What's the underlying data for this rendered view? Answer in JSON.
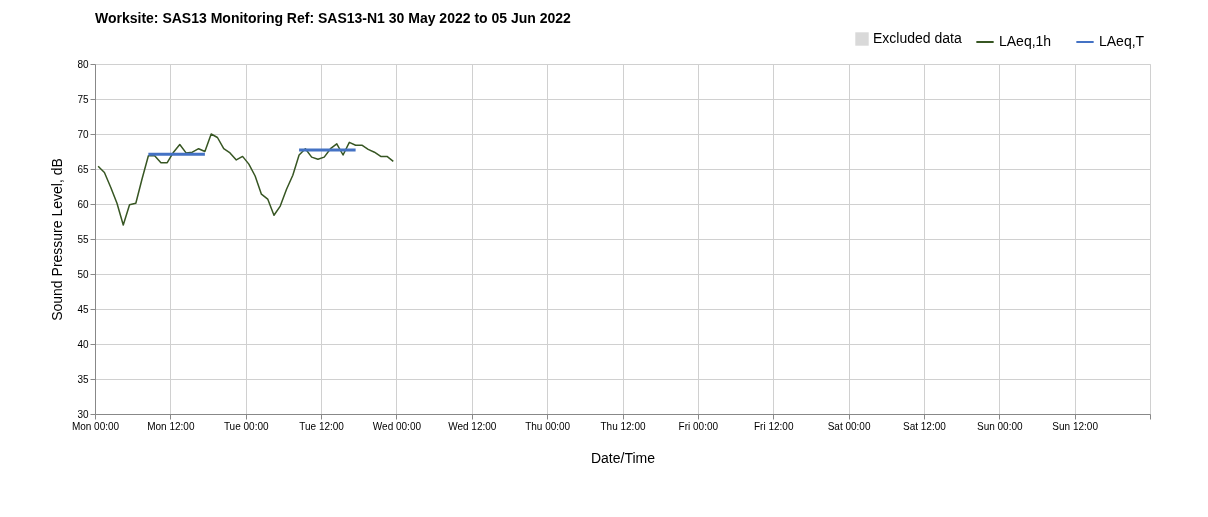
{
  "chart_data": {
    "type": "line",
    "title": "Worksite: SAS13    Monitoring Ref: SAS13-N1      30 May 2022 to 05 Jun 2022",
    "xlabel": "Date/Time",
    "ylabel": "Sound Pressure Level, dB",
    "xlim": [
      "2022-05-30T00:00",
      "2022-06-06T00:00"
    ],
    "xticks": [
      {
        "value": "2022-05-30T00:00",
        "label": "Mon 00:00"
      },
      {
        "value": "2022-05-30T12:00",
        "label": "Mon 12:00"
      },
      {
        "value": "2022-05-31T00:00",
        "label": "Tue 00:00"
      },
      {
        "value": "2022-05-31T12:00",
        "label": "Tue 12:00"
      },
      {
        "value": "2022-06-01T00:00",
        "label": "Wed 00:00"
      },
      {
        "value": "2022-06-01T12:00",
        "label": "Wed 12:00"
      },
      {
        "value": "2022-06-02T00:00",
        "label": "Thu 00:00"
      },
      {
        "value": "2022-06-02T12:00",
        "label": "Thu 12:00"
      },
      {
        "value": "2022-06-03T00:00",
        "label": "Fri 00:00"
      },
      {
        "value": "2022-06-03T12:00",
        "label": "Fri 12:00"
      },
      {
        "value": "2022-06-04T00:00",
        "label": "Sat 00:00"
      },
      {
        "value": "2022-06-04T12:00",
        "label": "Sat 12:00"
      },
      {
        "value": "2022-06-05T00:00",
        "label": "Sun 00:00"
      },
      {
        "value": "2022-06-05T12:00",
        "label": "Sun 12:00"
      },
      {
        "value": "2022-06-06T00:00",
        "label": null
      }
    ],
    "ylim": [
      30,
      80
    ],
    "yticks": [
      30,
      35,
      40,
      45,
      50,
      55,
      60,
      65,
      70,
      75,
      80
    ],
    "grid": true,
    "legend": "top right",
    "series": [
      {
        "name": "Excluded data",
        "type": "area",
        "color": "#d9d9d9"
      },
      {
        "name": "LAeq,1h",
        "color": "#375623",
        "x": [
          "2022-05-30T00:30",
          "2022-05-30T01:30",
          "2022-05-30T02:30",
          "2022-05-30T03:30",
          "2022-05-30T04:30",
          "2022-05-30T05:30",
          "2022-05-30T06:30",
          "2022-05-30T07:30",
          "2022-05-30T08:30",
          "2022-05-30T09:30",
          "2022-05-30T10:30",
          "2022-05-30T11:30",
          "2022-05-30T12:30",
          "2022-05-30T13:30",
          "2022-05-30T14:30",
          "2022-05-30T15:30",
          "2022-05-30T16:30",
          "2022-05-30T17:30",
          "2022-05-30T18:30",
          "2022-05-30T19:30",
          "2022-05-30T20:30",
          "2022-05-30T21:30",
          "2022-05-30T22:30",
          "2022-05-30T23:30",
          "2022-05-31T00:30",
          "2022-05-31T01:30",
          "2022-05-31T02:30",
          "2022-05-31T03:30",
          "2022-05-31T04:30",
          "2022-05-31T05:30",
          "2022-05-31T06:30",
          "2022-05-31T07:30",
          "2022-05-31T08:30",
          "2022-05-31T09:30",
          "2022-05-31T10:30",
          "2022-05-31T11:30",
          "2022-05-31T12:30",
          "2022-05-31T13:30",
          "2022-05-31T14:30",
          "2022-05-31T15:30",
          "2022-05-31T16:30",
          "2022-05-31T17:30",
          "2022-05-31T18:30",
          "2022-05-31T19:30",
          "2022-05-31T20:30",
          "2022-05-31T21:30",
          "2022-05-31T22:30",
          "2022-05-31T23:30"
        ],
        "values": [
          65.4,
          64.5,
          62.4,
          60.1,
          57.0,
          59.9,
          60.1,
          63.6,
          66.9,
          66.9,
          65.9,
          65.9,
          67.4,
          68.5,
          67.3,
          67.4,
          67.9,
          67.5,
          70.0,
          69.5,
          67.9,
          67.3,
          66.3,
          66.8,
          65.7,
          64.0,
          61.4,
          60.7,
          58.4,
          59.7,
          62.1,
          64.1,
          67.0,
          67.9,
          66.7,
          66.4,
          66.7,
          67.9,
          68.6,
          67.0,
          68.8,
          68.4,
          68.4,
          67.8,
          67.4,
          66.8,
          66.8,
          66.1
        ]
      },
      {
        "name": "LAeq,T",
        "color": "#4472c4",
        "x": [
          "2022-05-30T08:30",
          "2022-05-30T17:30",
          null,
          "2022-05-31T08:30",
          "2022-05-31T17:30"
        ],
        "values": [
          67.1,
          67.1,
          null,
          67.7,
          67.7
        ]
      }
    ]
  }
}
